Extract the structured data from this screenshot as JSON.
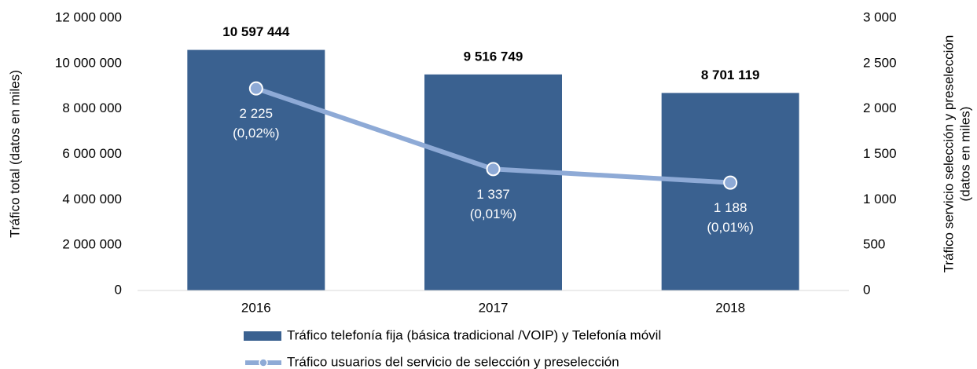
{
  "chart_data": {
    "type": "bar_line",
    "ylabel": "Tráfico total (datos en miles)",
    "y2label_lines": [
      "Tráfico servicio selección y preselección",
      "(datos en miles)"
    ],
    "categories": [
      "2016",
      "2017",
      "2018"
    ],
    "series": [
      {
        "name": "Tráfico telefonía fija (básica tradicional /VOIP) y  Telefonía móvil",
        "type": "bar",
        "color": "#3a6190",
        "values": [
          10597444,
          9516749,
          8701119
        ],
        "value_labels": [
          "10 597 444",
          "9 516 749",
          "8 701 119"
        ]
      },
      {
        "name": "Tráfico usuarios del servicio de selección y preselección",
        "type": "line",
        "axis": "y2",
        "color": "#8eaad6",
        "values": [
          2225,
          1337,
          1188
        ],
        "value_labels": [
          "2 225",
          "1 337",
          "1 188"
        ],
        "share_labels": [
          "(0,02%)",
          "(0,01%)",
          "(0,01%)"
        ]
      }
    ],
    "ylim": [
      0,
      12000000
    ],
    "yticks": [
      0,
      {
        "value": 2000000,
        "label": "2 000 000"
      },
      {
        "value": 4000000,
        "label": "4 000 000"
      },
      {
        "value": 6000000,
        "label": "6 000 000"
      },
      {
        "value": 8000000,
        "label": "8 000 000"
      },
      {
        "value": 10000000,
        "label": "10 000 000"
      },
      {
        "value": 12000000,
        "label": "12 000 000"
      }
    ],
    "y2lim": [
      0,
      3000
    ],
    "y2ticks": [
      0,
      500,
      {
        "value": 1000,
        "label": "1 000"
      },
      {
        "value": 1500,
        "label": "1 500"
      },
      {
        "value": 2000,
        "label": "2 000"
      },
      {
        "value": 2500,
        "label": "2 500"
      },
      {
        "value": 3000,
        "label": "3 000"
      }
    ]
  }
}
